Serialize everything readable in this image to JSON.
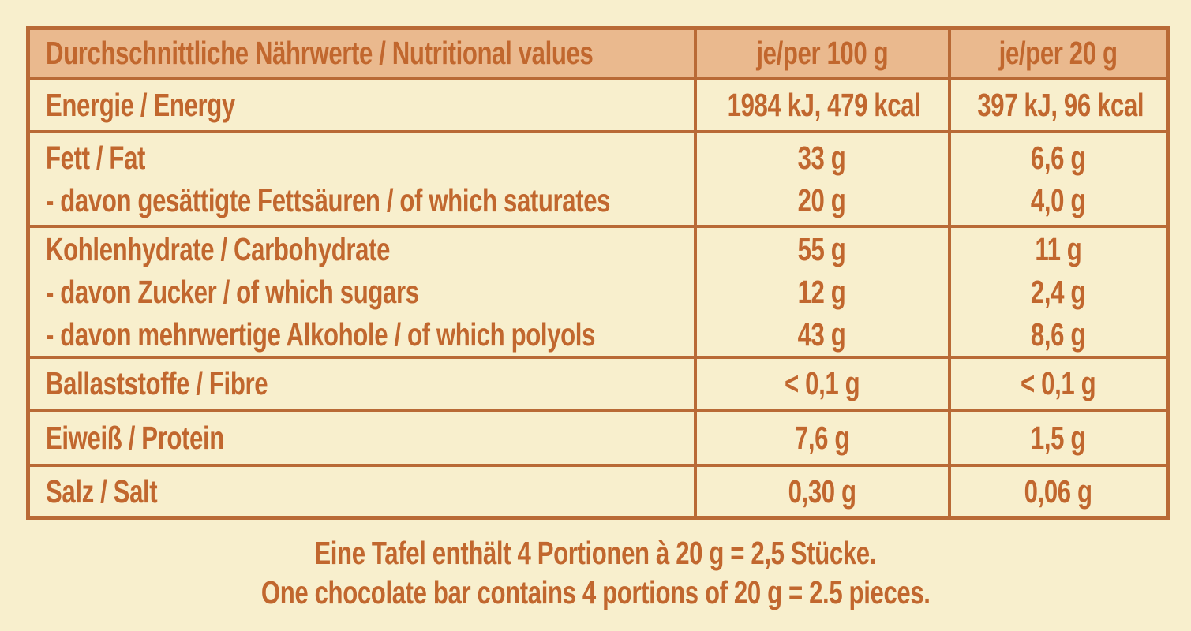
{
  "colors": {
    "background": "#f8efcd",
    "header_bg": "#eab98e",
    "accent": "#c1672e",
    "border": "#b96a36"
  },
  "table": {
    "header": {
      "title": "Durchschnittliche Nährwerte / Nutritional values",
      "per100": "je/per 100 g",
      "per20": "je/per 20 g"
    },
    "rows": [
      {
        "lines": [
          {
            "label": "Energie / Energy",
            "per100": "1984 kJ, 479 kcal",
            "per20": "397 kJ, 96 kcal"
          }
        ]
      },
      {
        "lines": [
          {
            "label": "Fett / Fat",
            "per100": "33 g",
            "per20": "6,6 g"
          },
          {
            "label": "- davon gesättigte Fettsäuren / of which saturates",
            "per100": "20 g",
            "per20": "4,0 g"
          }
        ]
      },
      {
        "lines": [
          {
            "label": "Kohlenhydrate / Carbohydrate",
            "per100": "55 g",
            "per20": "11 g"
          },
          {
            "label": "- davon Zucker / of which sugars",
            "per100": "12 g",
            "per20": "2,4 g"
          },
          {
            "label": "- davon mehrwertige Alkohole / of which polyols",
            "per100": "43 g",
            "per20": "8,6 g"
          }
        ]
      },
      {
        "lines": [
          {
            "label": "Ballaststoffe / Fibre",
            "per100": "< 0,1 g",
            "per20": "< 0,1 g"
          }
        ]
      },
      {
        "lines": [
          {
            "label": "Eiweiß / Protein",
            "per100": "7,6 g",
            "per20": "1,5 g"
          }
        ]
      },
      {
        "lines": [
          {
            "label": "Salz / Salt",
            "per100": "0,30 g",
            "per20": "0,06 g"
          }
        ]
      }
    ]
  },
  "footer": {
    "line1": "Eine Tafel enthält 4 Portionen à 20 g = 2,5 Stücke.",
    "line2": "One chocolate bar contains 4 portions of 20 g = 2.5 pieces."
  }
}
